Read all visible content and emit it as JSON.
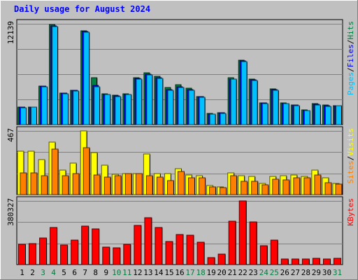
{
  "chart_data": {
    "type": "bar",
    "title": "Daily usage for August 2024",
    "categories": [
      "1",
      "2",
      "3",
      "4",
      "5",
      "6",
      "7",
      "8",
      "9",
      "10",
      "11",
      "12",
      "13",
      "14",
      "15",
      "16",
      "17",
      "18",
      "19",
      "20",
      "21",
      "22",
      "23",
      "24",
      "25",
      "26",
      "27",
      "28",
      "29",
      "30",
      "31"
    ],
    "weekend_days": [
      "3",
      "4",
      "10",
      "11",
      "17",
      "18",
      "24",
      "25",
      "31"
    ],
    "panels": [
      {
        "id": "pages-files-hits",
        "max_label": "12139",
        "ymax": 12139,
        "legend": [
          {
            "text": "Pages",
            "color": "#00c0ff"
          },
          {
            "text": "/",
            "color": "#000000"
          },
          {
            "text": "Files",
            "color": "#0000ff"
          },
          {
            "text": "/",
            "color": "#000000"
          },
          {
            "text": "Hits",
            "color": "#008040"
          }
        ],
        "series": [
          {
            "name": "Hits",
            "color": "#008040",
            "values": [
              2130,
              2130,
              4640,
              12040,
              3800,
              4160,
              11300,
              5670,
              3700,
              3560,
              3700,
              5650,
              6200,
              5830,
              4440,
              4770,
              4360,
              3380,
              1360,
              1450,
              5650,
              7750,
              5500,
              2650,
              4300,
              2620,
              2400,
              1760,
              2490,
              2320,
              2300
            ]
          },
          {
            "name": "Files",
            "color": "#0000ff",
            "values": [
              2070,
              2100,
              4600,
              11920,
              3760,
              4100,
              11220,
              4700,
              3660,
              3460,
              3660,
              5550,
              6080,
              5670,
              4230,
              4530,
              4230,
              3360,
              1290,
              1420,
              5520,
              7660,
              5410,
              2620,
              4230,
              2570,
              2340,
              1700,
              2450,
              2260,
              2280
            ]
          },
          {
            "name": "Pages",
            "color": "#00c0ff",
            "values": [
              2030,
              2070,
              4550,
              11800,
              3700,
              4020,
              11100,
              4570,
              3600,
              3400,
              3600,
              5500,
              5960,
              5600,
              4150,
              4430,
              4160,
              3300,
              1230,
              1380,
              5450,
              7560,
              5350,
              2560,
              4160,
              2520,
              2290,
              1650,
              2380,
              2200,
              2240
            ]
          }
        ]
      },
      {
        "id": "visits-sites",
        "max_label": "467",
        "ymax": 467,
        "legend": [
          {
            "text": "Sites",
            "color": "#ff8000"
          },
          {
            "text": "/",
            "color": "#000000"
          },
          {
            "text": "Visits",
            "color": "#ffff00"
          }
        ],
        "series": [
          {
            "name": "Visits",
            "color": "#ffff00",
            "values": [
              318,
              318,
              258,
              387,
              181,
              232,
              467,
              308,
              217,
              148,
              156,
              156,
              298,
              156,
              156,
              192,
              146,
              141,
              66,
              56,
              161,
              141,
              131,
              81,
              131,
              136,
              146,
              131,
              181,
              121,
              81
            ]
          },
          {
            "name": "Sites",
            "color": "#ff8000",
            "values": [
              157,
              157,
              136,
              333,
              141,
              152,
              343,
              146,
              126,
              141,
              156,
              156,
              136,
              126,
              101,
              167,
              121,
              121,
              56,
              51,
              141,
              96,
              96,
              71,
              111,
              106,
              121,
              121,
              146,
              86,
              76
            ]
          }
        ]
      },
      {
        "id": "kbytes",
        "max_label": "380327",
        "ymax": 380327,
        "legend": [
          {
            "text": "KBytes",
            "color": "#ff0000"
          }
        ],
        "series": [
          {
            "name": "KBytes",
            "color": "#ff0000",
            "values": [
              120000,
              125000,
              158000,
              223000,
              115000,
              145000,
              228000,
              215000,
              103000,
              102000,
              120000,
              232000,
              282000,
              222000,
              137000,
              179000,
              177000,
              135000,
              43000,
              62000,
              258000,
              380327,
              257000,
              114000,
              145000,
              33000,
              33000,
              32000,
              38000,
              34000,
              38000
            ]
          }
        ]
      }
    ]
  }
}
